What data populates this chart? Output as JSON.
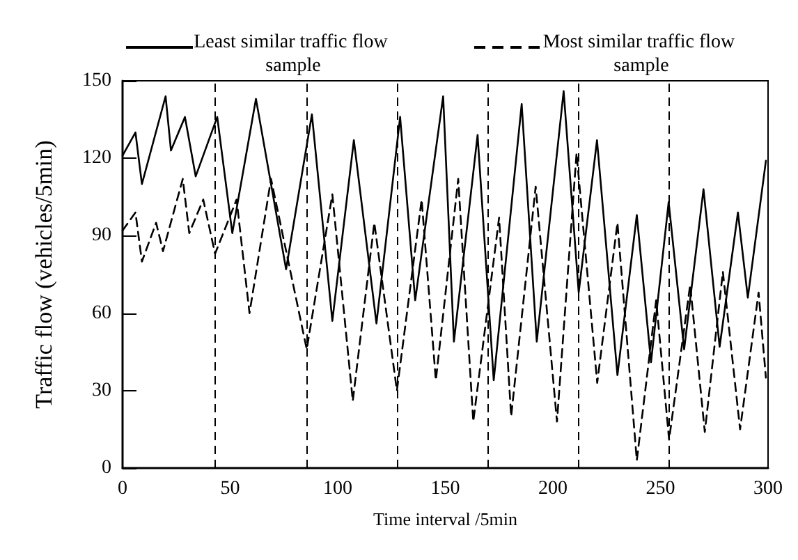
{
  "chart_data": {
    "type": "line",
    "xlabel": "Time interval /5min",
    "ylabel": "Traffic flow (vehicles/5min)",
    "xlim": [
      0,
      300
    ],
    "xticks": [
      0,
      50,
      100,
      150,
      200,
      250,
      300
    ],
    "ylim": [
      0,
      150
    ],
    "yticks": [
      0,
      30,
      60,
      90,
      120,
      150
    ],
    "grid": false,
    "legend": "top",
    "marker": "none",
    "series": [
      {
        "name": "Least similar traffic flow sample",
        "color": "#000000",
        "line_style": "solid",
        "x": [
          0,
          6,
          9,
          20,
          22.5,
          29,
          34,
          44,
          51,
          62,
          76,
          88,
          97.5,
          107.5,
          118,
          129,
          136,
          149,
          154,
          165,
          172.5,
          185.5,
          192.5,
          205,
          212,
          220.5,
          230,
          239,
          245.6,
          253.8,
          261,
          270,
          277.5,
          286,
          290.6,
          299
        ],
        "values": [
          121,
          130,
          110,
          144,
          123,
          136,
          113,
          136,
          91,
          143,
          77,
          137,
          57,
          127,
          56,
          136,
          65,
          144,
          49,
          129,
          34,
          141,
          49,
          146,
          68,
          127,
          36,
          98,
          41,
          103,
          46,
          108,
          47,
          99,
          66,
          119
        ]
      },
      {
        "name": "Most similar traffic flow sample",
        "color": "#000000",
        "line_style": "dashed",
        "x": [
          0,
          6,
          9,
          15.6,
          18.8,
          28,
          31,
          37.5,
          43,
          53,
          59,
          69,
          85.6,
          97.5,
          107,
          117,
          127.5,
          139,
          145.6,
          156,
          163,
          175,
          180.6,
          192,
          201.9,
          211,
          220.6,
          230,
          239,
          248,
          254,
          263.8,
          270.6,
          279,
          287,
          295.6,
          299
        ],
        "values": [
          92,
          99,
          80,
          95,
          84,
          112,
          91,
          104,
          83,
          104,
          60,
          112,
          46,
          106,
          26,
          95,
          30,
          104,
          34,
          112,
          18,
          97,
          20,
          109,
          18,
          122,
          33,
          95,
          3,
          65,
          11,
          71,
          14,
          76,
          15,
          68,
          35
        ]
      }
    ],
    "ref_lines": [
      {
        "axis": "x",
        "value": 43,
        "line_style": "dashed",
        "color": "#000000"
      },
      {
        "axis": "x",
        "value": 85.6,
        "line_style": "dashed",
        "color": "#000000"
      },
      {
        "axis": "x",
        "value": 127.5,
        "line_style": "dashed",
        "color": "#000000"
      },
      {
        "axis": "x",
        "value": 170,
        "line_style": "dashed",
        "color": "#000000"
      },
      {
        "axis": "x",
        "value": 212,
        "line_style": "dashed",
        "color": "#000000"
      },
      {
        "axis": "x",
        "value": 254,
        "line_style": "dashed",
        "color": "#000000"
      }
    ]
  }
}
